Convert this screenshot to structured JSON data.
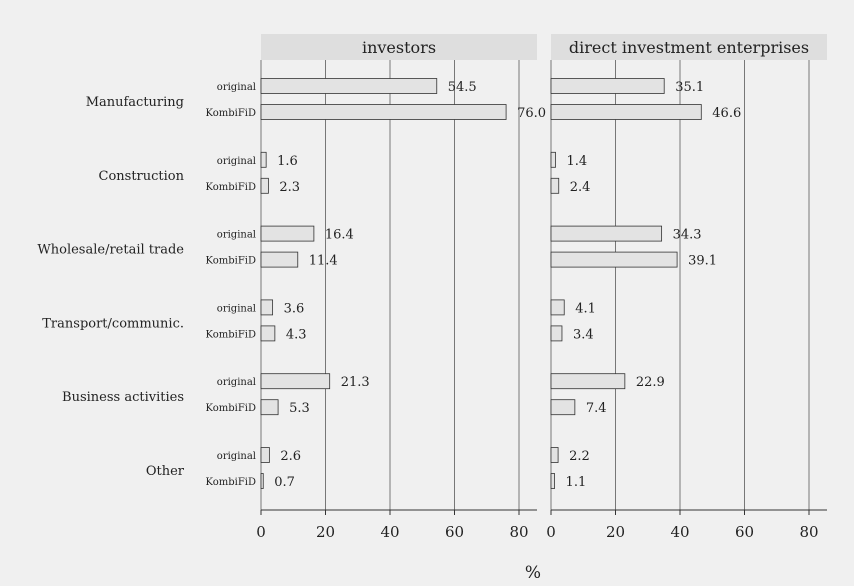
{
  "chart_data": {
    "type": "bar",
    "orientation": "horizontal",
    "xlabel": "%",
    "xlim": [
      0,
      85
    ],
    "xticks": [
      0,
      20,
      40,
      60,
      80
    ],
    "grid": true,
    "colors": {
      "background": "#f0f0f0",
      "panel_header": "#dedede",
      "bar_fill": "#e3e3e3",
      "bar_stroke": "#333333",
      "grid": "#777777"
    },
    "categories": [
      "Manufacturing",
      "Construction",
      "Wholesale/retail trade",
      "Transport/communic.",
      "Business activities",
      "Other"
    ],
    "series_labels": [
      "original",
      "KombiFiD"
    ],
    "panels": [
      {
        "title": "investors",
        "series": [
          {
            "name": "original",
            "values": [
              54.5,
              1.6,
              16.4,
              3.6,
              21.3,
              2.6
            ]
          },
          {
            "name": "KombiFiD",
            "values": [
              76.0,
              2.3,
              11.4,
              4.3,
              5.3,
              0.7
            ]
          }
        ]
      },
      {
        "title": "direct investment enterprises",
        "series": [
          {
            "name": "original",
            "values": [
              35.1,
              1.4,
              34.3,
              4.1,
              22.9,
              2.2
            ]
          },
          {
            "name": "KombiFiD",
            "values": [
              46.6,
              2.4,
              39.1,
              3.4,
              7.4,
              1.1
            ]
          }
        ]
      }
    ]
  }
}
